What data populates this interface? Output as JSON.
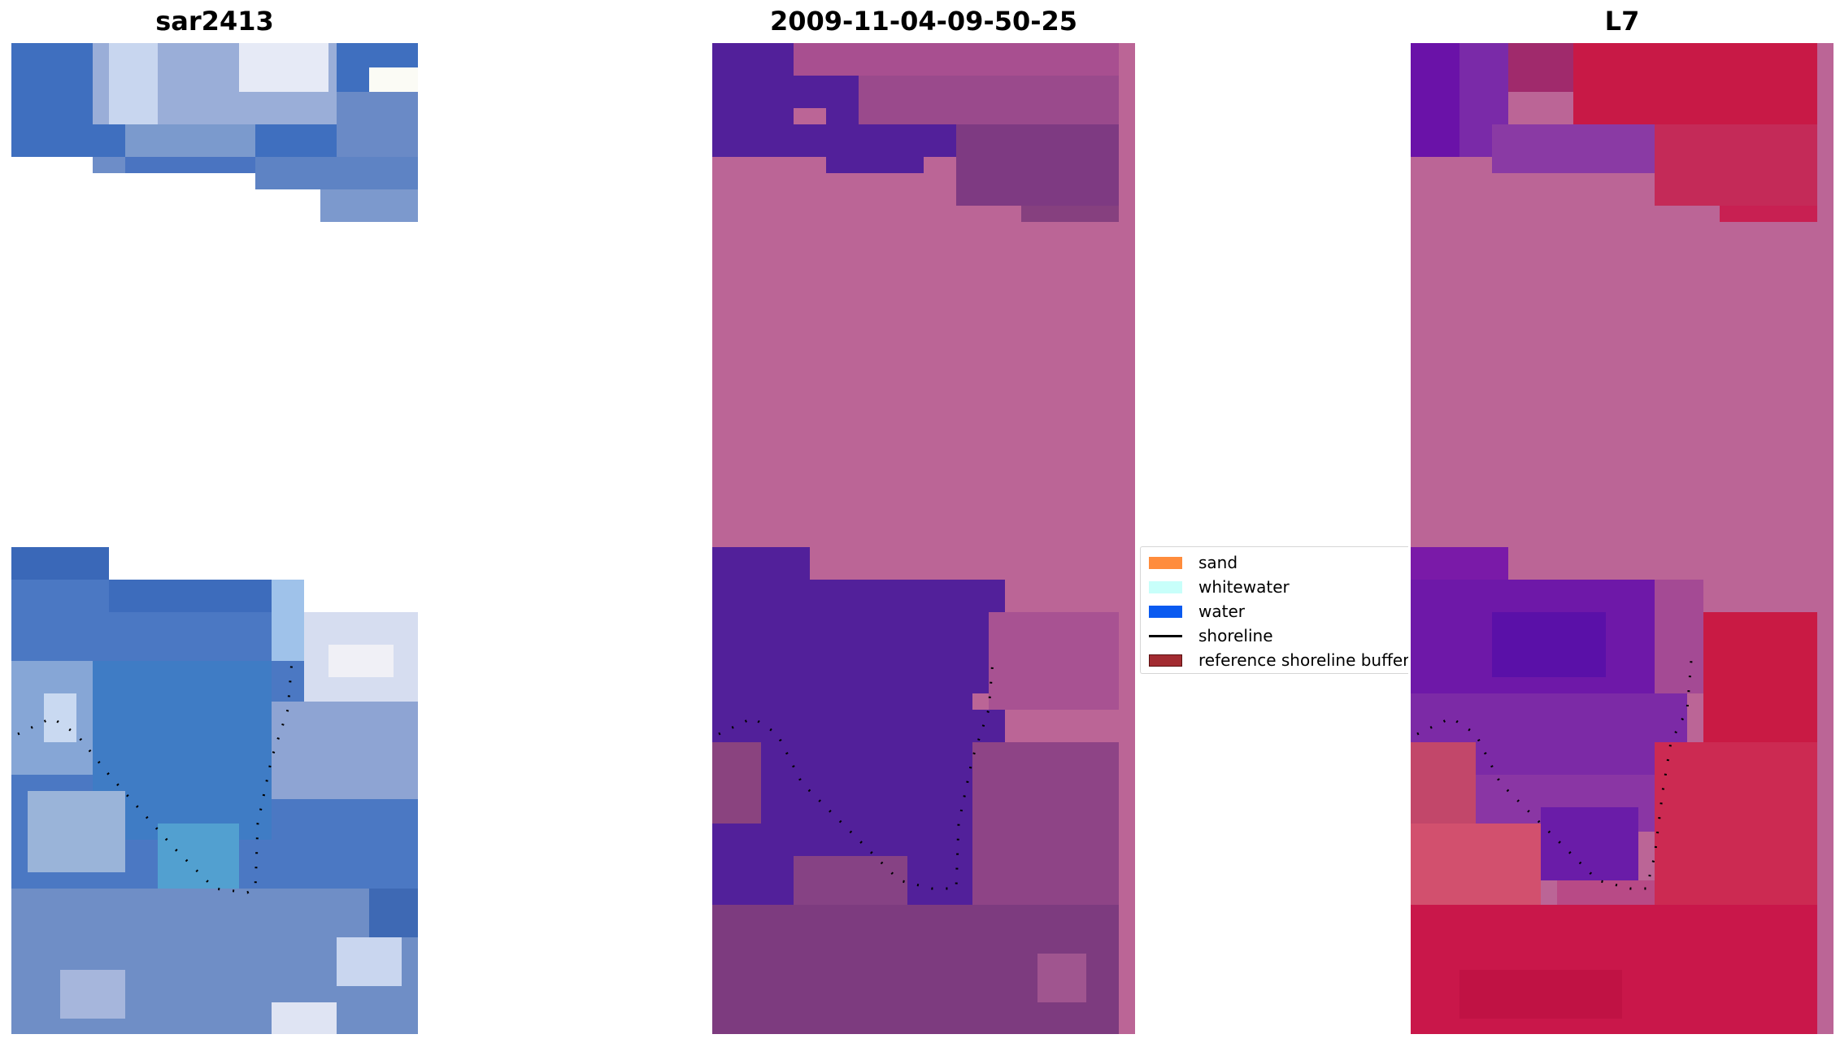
{
  "panels": [
    {
      "title": "sar2413",
      "image": "rgb-satellite-composite"
    },
    {
      "title": "2009-11-04-09-50-25",
      "image": "classified-image-overlay"
    },
    {
      "title": "L7",
      "image": "index-image-overlay"
    }
  ],
  "legend": {
    "items": [
      {
        "label": "sand",
        "color": "#ff8c3c",
        "kind": "patch"
      },
      {
        "label": "whitewater",
        "color": "#c8fffa",
        "kind": "patch"
      },
      {
        "label": "water",
        "color": "#0a5af0",
        "kind": "patch"
      },
      {
        "label": "shoreline",
        "color": "#000000",
        "kind": "line"
      },
      {
        "label": "reference shoreline buffer",
        "color": "#a22b31",
        "kind": "patch"
      }
    ]
  },
  "colors": {
    "masked_magenta": "#bb6596",
    "water_purple": "#52209a",
    "blue_base": "#3f70c0",
    "red_base": "#c4143c"
  }
}
